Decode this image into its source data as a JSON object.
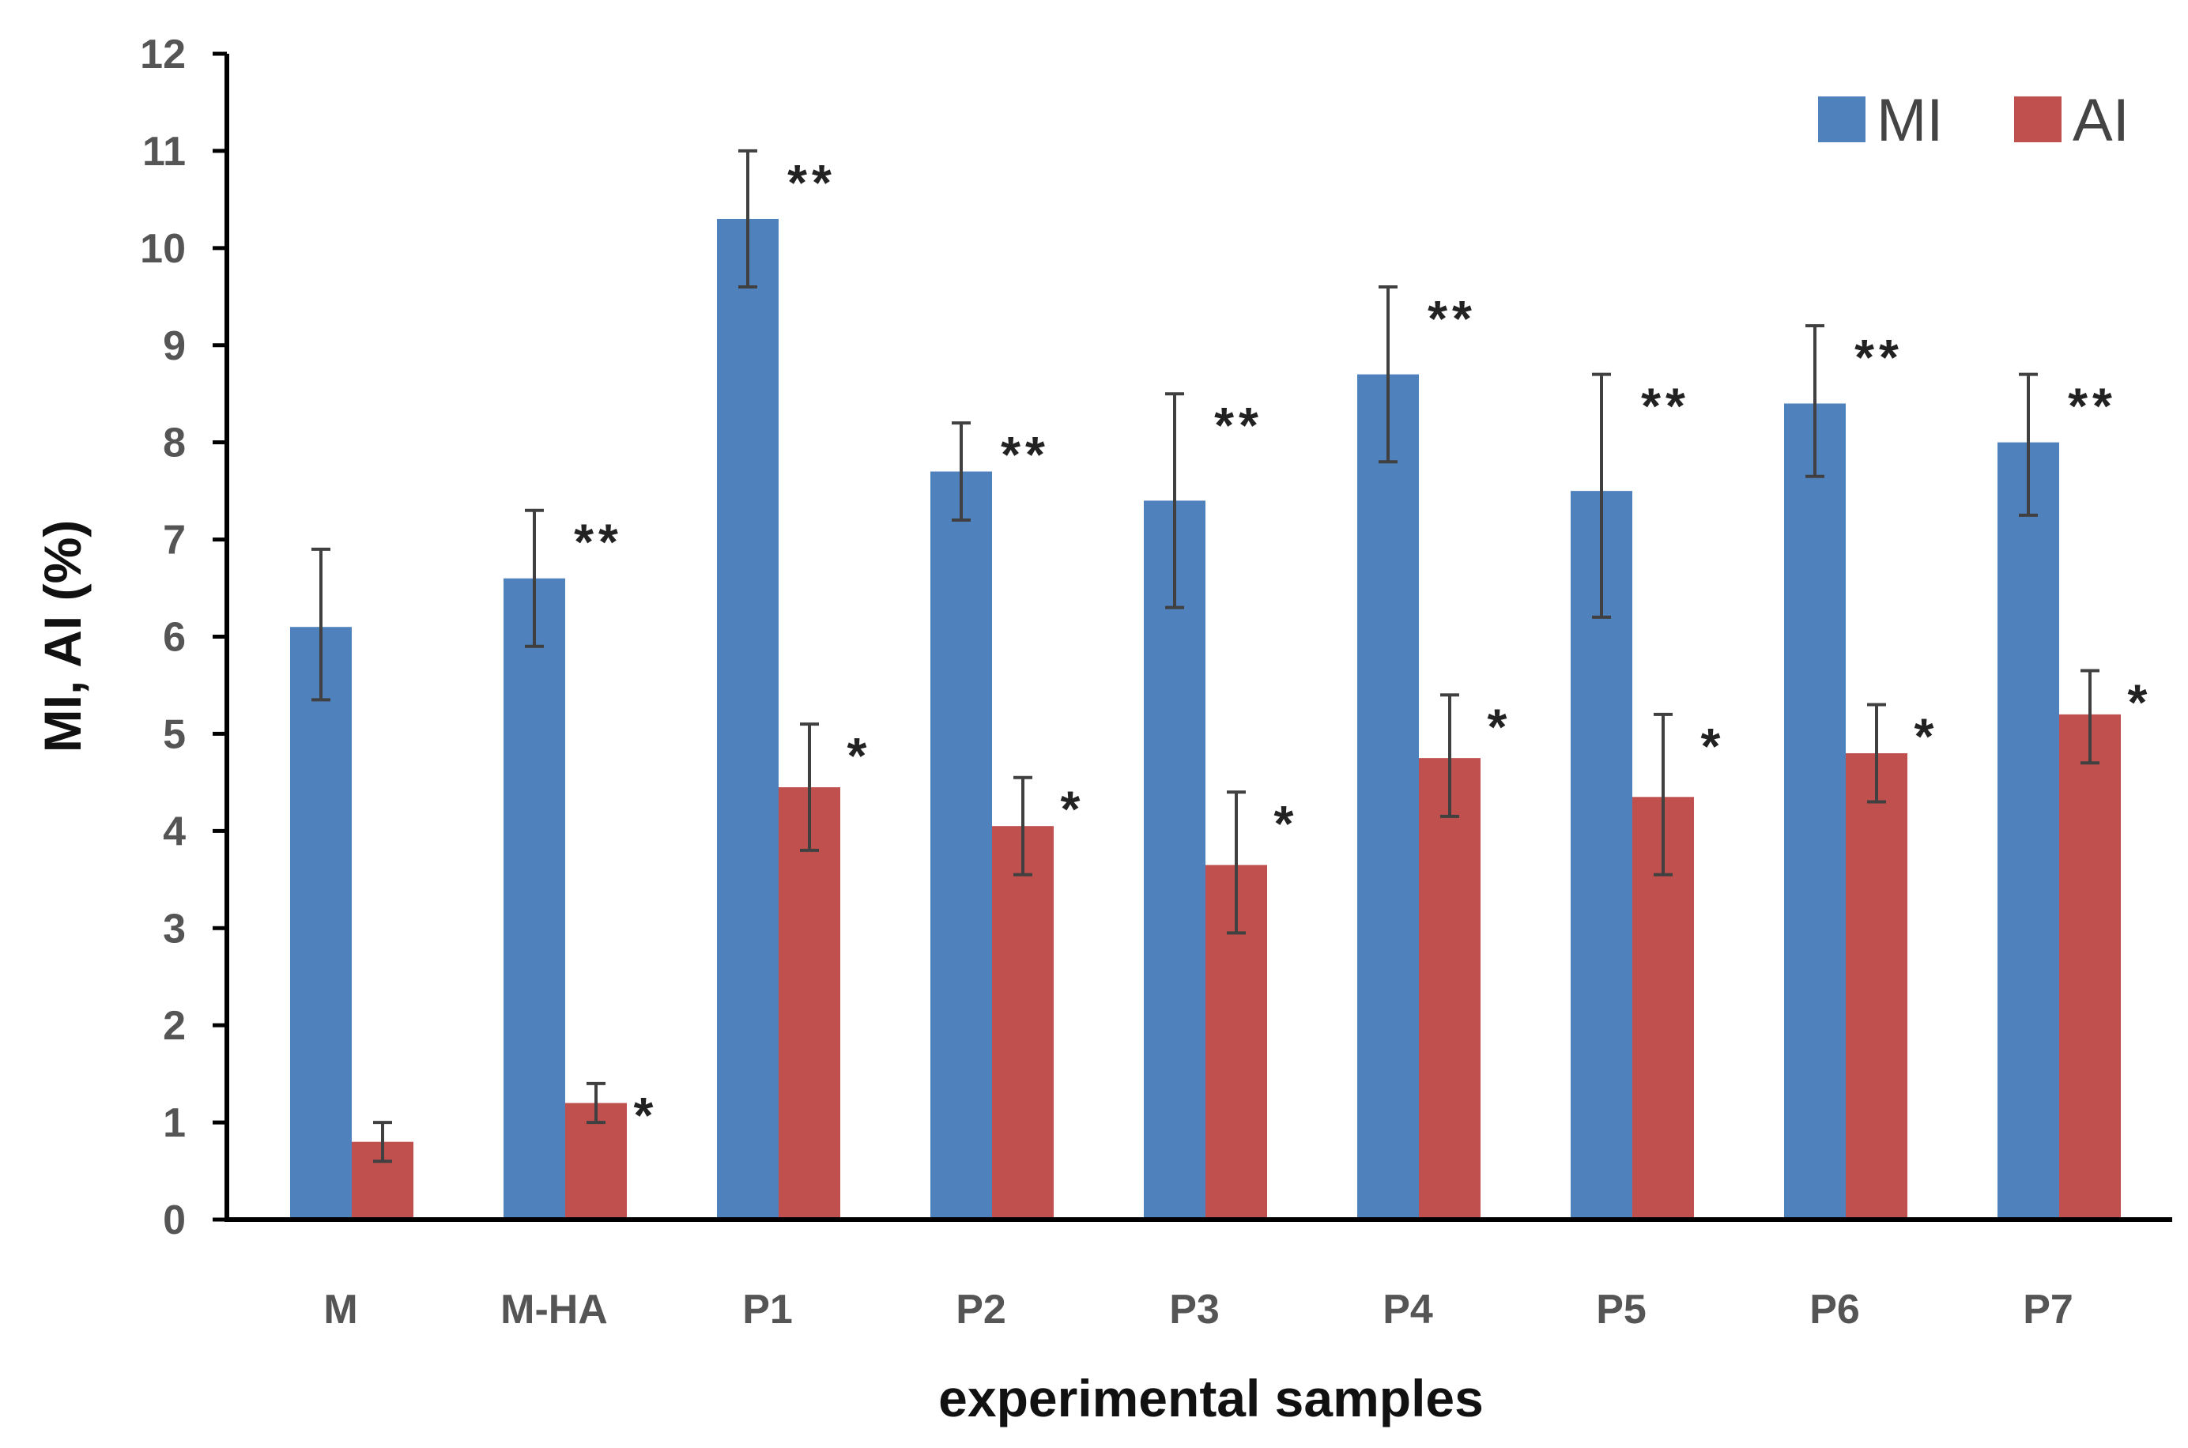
{
  "chart_data": {
    "type": "bar",
    "title": "",
    "xlabel": "experimental samples",
    "ylabel": "MI, AI (%)",
    "ylim": [
      0,
      12
    ],
    "yticks": [
      0,
      1,
      2,
      3,
      4,
      5,
      6,
      7,
      8,
      9,
      10,
      11,
      12
    ],
    "grid": false,
    "legend_position": "top-right",
    "categories": [
      "M",
      "M-HA",
      "P1",
      "P2",
      "P3",
      "P4",
      "P5",
      "P6",
      "P7"
    ],
    "series": [
      {
        "name": "MI",
        "color": "#4f81bd",
        "values": [
          6.1,
          6.6,
          10.3,
          7.7,
          7.4,
          8.7,
          7.5,
          8.4,
          8.0
        ],
        "error_low": [
          5.35,
          5.9,
          9.6,
          7.2,
          6.3,
          7.8,
          6.2,
          7.65,
          7.25
        ],
        "error_high": [
          6.9,
          7.3,
          11.0,
          8.2,
          8.5,
          9.6,
          8.7,
          9.2,
          8.7
        ],
        "significance": [
          "",
          "**",
          "**",
          "**",
          "**",
          "**",
          "**",
          "**",
          "**"
        ]
      },
      {
        "name": "AI",
        "color": "#c0504d",
        "values": [
          0.8,
          1.2,
          4.45,
          4.05,
          3.65,
          4.75,
          4.35,
          4.8,
          5.2
        ],
        "error_low": [
          0.6,
          1.0,
          3.8,
          3.55,
          2.95,
          4.15,
          3.55,
          4.3,
          4.7
        ],
        "error_high": [
          1.0,
          1.4,
          5.1,
          4.55,
          4.4,
          5.4,
          5.2,
          5.3,
          5.65
        ],
        "significance": [
          "",
          "*",
          "*",
          "*",
          "*",
          "*",
          "*",
          "*",
          "*"
        ]
      }
    ]
  }
}
